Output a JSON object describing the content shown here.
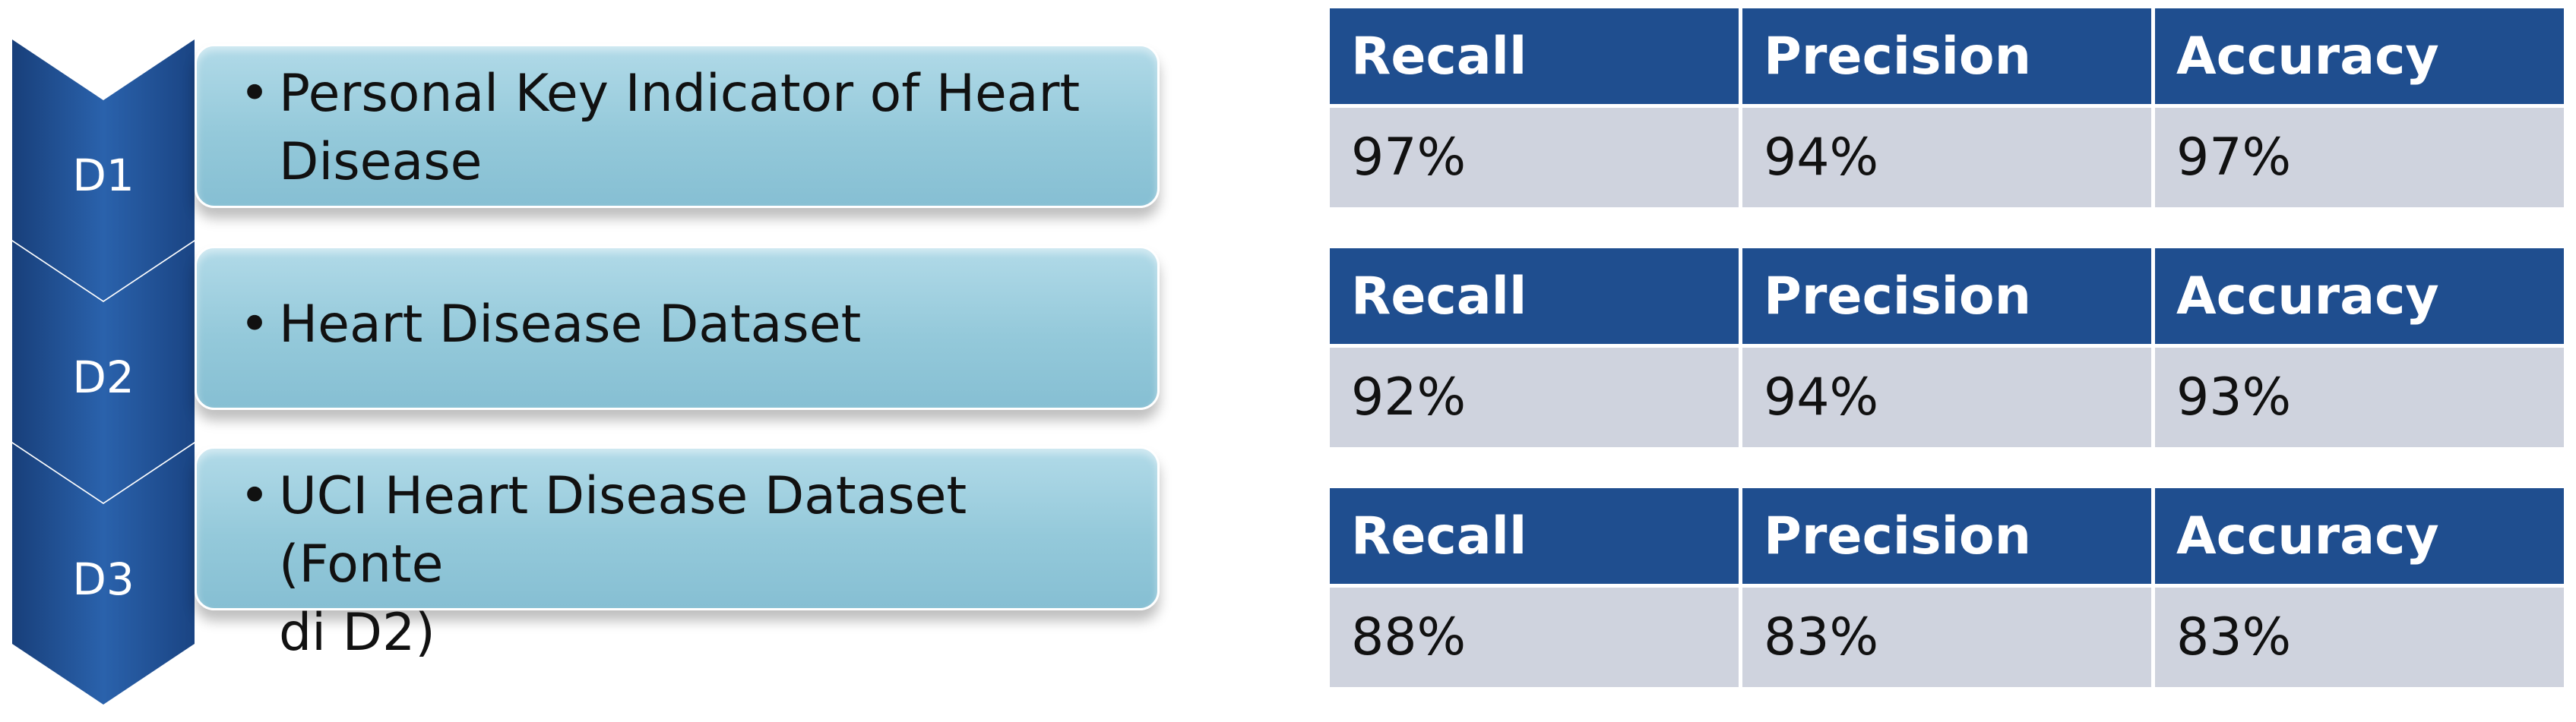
{
  "colors": {
    "chevron": "#1f4e8f",
    "card": "#94c9da",
    "table_header": "#1f4e8f",
    "table_cell": "#cfd3de"
  },
  "datasets": [
    {
      "id": "D1",
      "bullet": "•",
      "text_lines": [
        "Personal Key Indicator of Heart",
        "Disease"
      ]
    },
    {
      "id": "D2",
      "bullet": "•",
      "text_lines": [
        "Heart Disease Dataset"
      ]
    },
    {
      "id": "D3",
      "bullet": "•",
      "text_lines": [
        "UCI Heart Disease Dataset (Fonte",
        "di D2)"
      ]
    }
  ],
  "metrics_tables": [
    {
      "headers": [
        "Recall",
        "Precision",
        "Accuracy"
      ],
      "values": [
        "97%",
        "94%",
        "97%"
      ]
    },
    {
      "headers": [
        "Recall",
        "Precision",
        "Accuracy"
      ],
      "values": [
        "92%",
        "94%",
        "93%"
      ]
    },
    {
      "headers": [
        "Recall",
        "Precision",
        "Accuracy"
      ],
      "values": [
        "88%",
        "83%",
        "83%"
      ]
    }
  ]
}
